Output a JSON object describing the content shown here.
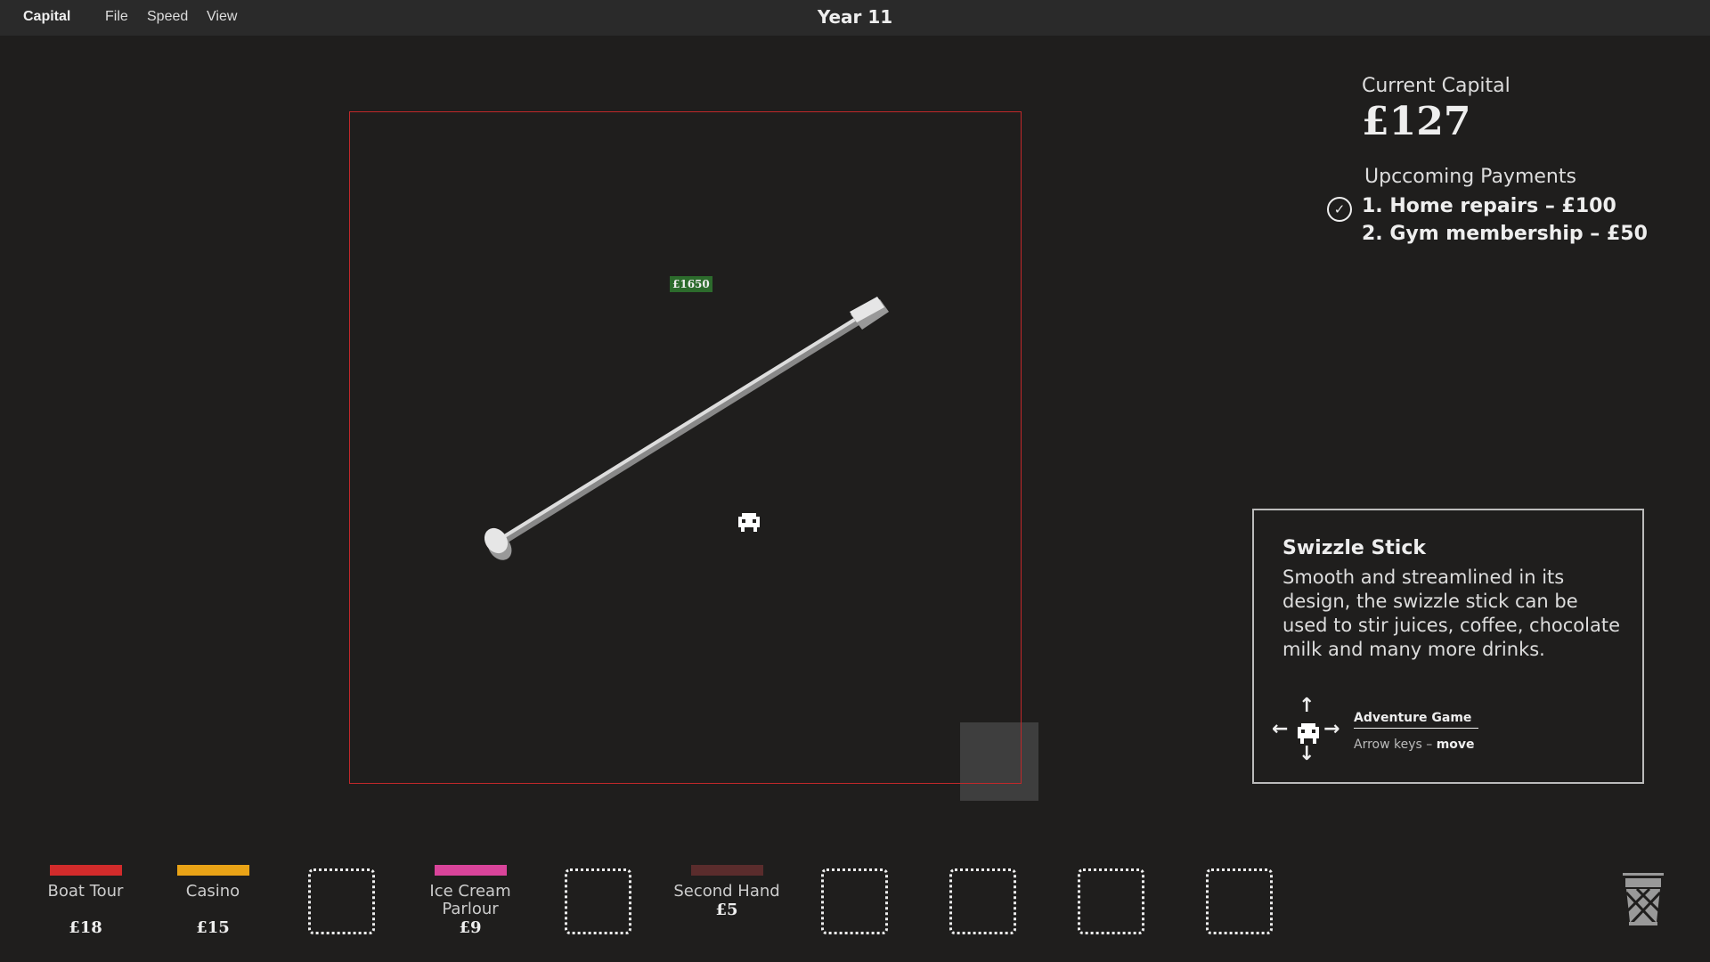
{
  "menubar": {
    "app": "Capital",
    "items": [
      "File",
      "Speed",
      "View"
    ],
    "year": "Year 11"
  },
  "game": {
    "price_tag": "£1650",
    "item": "swizzle stick",
    "player_icon": "robot-icon"
  },
  "capital": {
    "label": "Current Capital",
    "value": "£127"
  },
  "payments": {
    "label": "Upccoming Payments",
    "items": [
      "1. Home repairs – £100",
      "2. Gym membership – £50"
    ],
    "first_done": true
  },
  "info": {
    "title": "Swizzle Stick",
    "description": "Smooth and streamlined in its design, the swizzle stick can be used to stir juices, coffee, chocolate milk and many more drinks.",
    "game": "Adventure Game",
    "keys": "Arrow keys",
    "action": "move",
    "arrows": [
      "↑",
      "←",
      "→",
      "↓"
    ]
  },
  "slots": [
    {
      "name": "Boat Tour",
      "price": "£18",
      "color": "#d22b2b"
    },
    {
      "name": "Casino",
      "price": "£15",
      "color": "#e9a316"
    },
    null,
    {
      "name": "Ice Cream Parlour",
      "price": "£9",
      "color": "#d9449a"
    },
    null,
    {
      "name": "Second Hand",
      "price": "£5",
      "color": "#5a2c2c"
    },
    null,
    null,
    null,
    null
  ],
  "colors": {
    "background": "#1f1e1d",
    "frame": "#c0282a",
    "price_tag": "#2c6b2c"
  }
}
